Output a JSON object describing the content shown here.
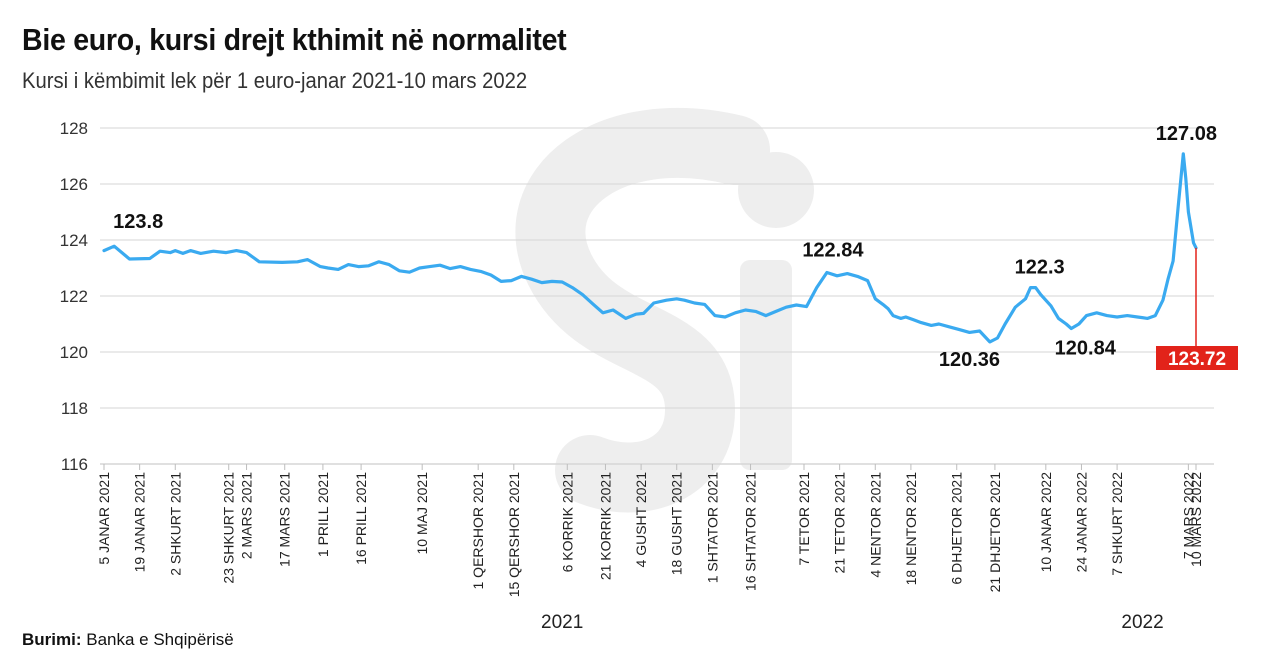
{
  "header": {
    "title": "Bie euro, kursi drejt kthimit në normalitet",
    "subtitle": "Kursi i këmbimit lek për 1 euro-janar 2021-10 mars 2022"
  },
  "source": {
    "label": "Burimi:",
    "text": "Banka e Shqipërisë"
  },
  "colors": {
    "line": "#3aaaf0",
    "highlight": "#e2231a",
    "grid": "#d6d6d6",
    "watermark": "#eeeeee"
  },
  "chart_data": {
    "type": "line",
    "title": "Bie euro, kursi drejt kthimit në normalitet",
    "subtitle": "Kursi i këmbimit lek për 1 euro-janar 2021-10 mars 2022",
    "ylim": [
      116,
      128
    ],
    "yticks": [
      116,
      118,
      120,
      122,
      124,
      126,
      128
    ],
    "grid": true,
    "legend": "none",
    "categories": [
      "5 JANAR 2021",
      "19 JANAR 2021",
      "2 SHKURT 2021",
      "23 SHKURT 2021",
      "2 MARS 2021",
      "17 MARS 2021",
      "1 PRILL 2021",
      "16 PRILL 2021",
      "10 MAJ 2021",
      "1 QERSHOR 2021",
      "15 QERSHOR 2021",
      "6 KORRIK 2021",
      "21 KORRIK 2021",
      "4 GUSHT 2021",
      "18  GUSHT 2021",
      "1 SHTATOR 2021",
      "16 SHTATOR 2021",
      "7 TETOR 2021",
      "21 TETOR 2021",
      "4 NENTOR 2021",
      "18 NENTOR 2021",
      "6 DHJETOR 2021",
      "21 DHJETOR 2021",
      "10 JANAR 2022",
      "24 JANAR 2022",
      "7 SHKURT 2022",
      "7 MARS 2022",
      "10 MARS 2022"
    ],
    "category_positions": [
      0,
      14,
      28,
      49,
      56,
      71,
      86,
      101,
      125,
      147,
      161,
      182,
      197,
      211,
      225,
      239,
      254,
      275,
      289,
      303,
      317,
      335,
      350,
      370,
      384,
      398,
      426,
      429
    ],
    "year_labels": [
      {
        "label": "2021",
        "x": 180
      },
      {
        "label": "2022",
        "x": 408
      }
    ],
    "series": [
      {
        "x": [
          0,
          4,
          10,
          18,
          22,
          26,
          28,
          31,
          34,
          38,
          43,
          48,
          52,
          56,
          61,
          70,
          76,
          80,
          85,
          88,
          92,
          96,
          100,
          104,
          108,
          112,
          116,
          120,
          124,
          128,
          132,
          136,
          140,
          144,
          148,
          152,
          156,
          160,
          164,
          168,
          172,
          176,
          180,
          184,
          188,
          192,
          196,
          200,
          205,
          209,
          212,
          216,
          221,
          225,
          228,
          232,
          236,
          240,
          244,
          248,
          252,
          256,
          260,
          264,
          268,
          272,
          276,
          280,
          284,
          288,
          292,
          296,
          300,
          303,
          306,
          308,
          310,
          313,
          315,
          318,
          321,
          325,
          328,
          332,
          336,
          340,
          344,
          348,
          351,
          354,
          358,
          362,
          364,
          366,
          368,
          372,
          375,
          378,
          380,
          383,
          386,
          390,
          394,
          398,
          402,
          406,
          410,
          413,
          416,
          418,
          420,
          422,
          424,
          425,
          426,
          428,
          429
        ],
        "y": [
          123.62,
          123.78,
          123.32,
          123.34,
          123.6,
          123.55,
          123.62,
          123.52,
          123.62,
          123.52,
          123.6,
          123.55,
          123.62,
          123.55,
          123.22,
          123.2,
          123.22,
          123.3,
          123.05,
          123.0,
          122.95,
          123.12,
          123.05,
          123.08,
          123.22,
          123.12,
          122.9,
          122.85,
          123.0,
          123.05,
          123.1,
          122.98,
          123.05,
          122.95,
          122.88,
          122.75,
          122.52,
          122.55,
          122.7,
          122.6,
          122.48,
          122.52,
          122.5,
          122.3,
          122.05,
          121.72,
          121.4,
          121.5,
          121.2,
          121.35,
          121.38,
          121.75,
          121.85,
          121.9,
          121.85,
          121.75,
          121.7,
          121.3,
          121.25,
          121.4,
          121.5,
          121.45,
          121.3,
          121.45,
          121.6,
          121.68,
          121.62,
          122.3,
          122.84,
          122.72,
          122.8,
          122.7,
          122.55,
          121.9,
          121.7,
          121.55,
          121.3,
          121.2,
          121.25,
          121.15,
          121.05,
          120.95,
          121.0,
          120.9,
          120.8,
          120.7,
          120.75,
          120.36,
          120.5,
          121.0,
          121.6,
          121.9,
          122.3,
          122.3,
          122.05,
          121.65,
          121.2,
          121.0,
          120.84,
          121.0,
          121.3,
          121.4,
          121.3,
          121.25,
          121.3,
          121.25,
          121.2,
          121.3,
          121.85,
          122.6,
          123.25,
          125.2,
          127.08,
          126.2,
          125.0,
          123.9,
          123.72
        ]
      }
    ],
    "annotations": [
      {
        "label": "123.8",
        "x": 4,
        "y": 123.78
      },
      {
        "label": "122.84",
        "x": 284,
        "y": 122.84
      },
      {
        "label": "122.3",
        "x": 366,
        "y": 122.3
      },
      {
        "label": "120.36",
        "x": 351,
        "y": 120.36
      },
      {
        "label": "120.84",
        "x": 380,
        "y": 120.84
      },
      {
        "label": "127.08",
        "x": 426,
        "y": 127.08
      }
    ],
    "last_value": {
      "label": "123.72",
      "x": 429,
      "y": 123.72
    }
  }
}
